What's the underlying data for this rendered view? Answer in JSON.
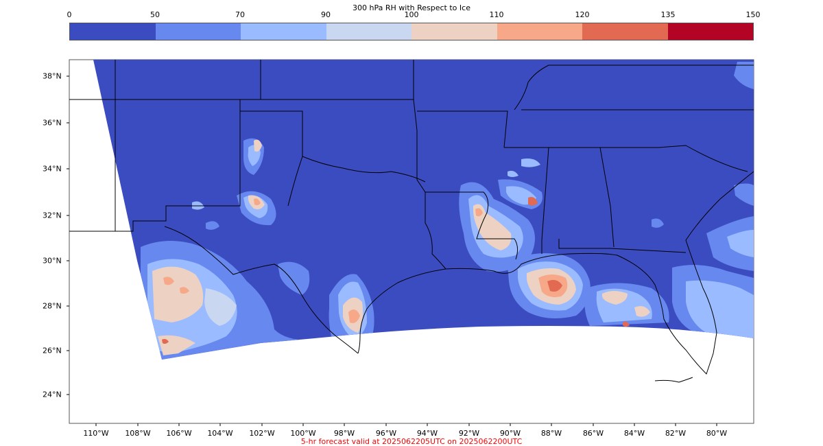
{
  "colorbar": {
    "title": "300 hPa RH with Respect to Ice",
    "ticks": [
      "0",
      "50",
      "70",
      "90",
      "100",
      "110",
      "120",
      "135",
      "150"
    ],
    "colors": [
      "#3b4cc0",
      "#6788ee",
      "#9abbff",
      "#c9d7f0",
      "#edd1c2",
      "#f7a889",
      "#e26952",
      "#b40426"
    ]
  },
  "axes": {
    "lat_labels": [
      "38°N",
      "36°N",
      "34°N",
      "32°N",
      "30°N",
      "28°N",
      "26°N",
      "24°N"
    ],
    "lon_labels": [
      "110°W",
      "108°W",
      "106°W",
      "104°W",
      "102°W",
      "100°W",
      "98°W",
      "96°W",
      "94°W",
      "92°W",
      "90°W",
      "88°W",
      "86°W",
      "84°W",
      "82°W",
      "80°W"
    ]
  },
  "footer": {
    "text": "5-hr forecast valid at 2025062205UTC on 2025062200UTC",
    "color": "#ff0000"
  }
}
